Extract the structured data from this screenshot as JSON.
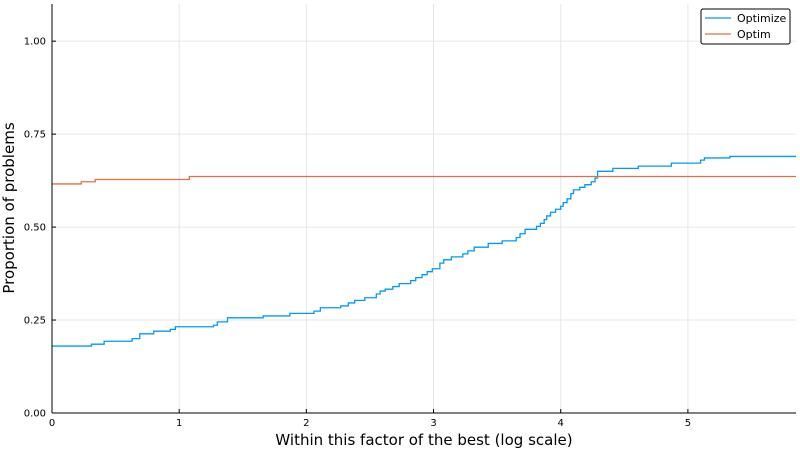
{
  "chart_data": {
    "type": "line",
    "step": true,
    "xlabel": "Within this factor of the best (log scale)",
    "ylabel": "Proportion of problems",
    "xlim": [
      0,
      5.85
    ],
    "ylim": [
      0,
      1.1
    ],
    "xticks": [
      0,
      1,
      2,
      3,
      4,
      5
    ],
    "xtick_labels": [
      "0",
      "1",
      "2",
      "3",
      "4",
      "5"
    ],
    "yticks": [
      0,
      0.25,
      0.5,
      0.75,
      1.0
    ],
    "ytick_labels": [
      "0.00",
      "0.25",
      "0.50",
      "0.75",
      "1.00"
    ],
    "grid": true,
    "legend_position": "top-right",
    "series": [
      {
        "name": "Optimize",
        "color": "#009AFA",
        "points": [
          [
            0,
            0.18
          ],
          [
            0.31,
            0.185
          ],
          [
            0.41,
            0.193
          ],
          [
            0.63,
            0.2
          ],
          [
            0.69,
            0.213
          ],
          [
            0.8,
            0.22
          ],
          [
            0.93,
            0.225
          ],
          [
            0.97,
            0.232
          ],
          [
            1.27,
            0.236
          ],
          [
            1.3,
            0.245
          ],
          [
            1.38,
            0.256
          ],
          [
            1.66,
            0.261
          ],
          [
            1.87,
            0.268
          ],
          [
            2.06,
            0.274
          ],
          [
            2.11,
            0.283
          ],
          [
            2.27,
            0.288
          ],
          [
            2.33,
            0.296
          ],
          [
            2.38,
            0.303
          ],
          [
            2.46,
            0.31
          ],
          [
            2.55,
            0.32
          ],
          [
            2.58,
            0.328
          ],
          [
            2.62,
            0.333
          ],
          [
            2.68,
            0.34
          ],
          [
            2.73,
            0.348
          ],
          [
            2.82,
            0.356
          ],
          [
            2.86,
            0.364
          ],
          [
            2.91,
            0.372
          ],
          [
            2.95,
            0.38
          ],
          [
            2.99,
            0.388
          ],
          [
            3.05,
            0.403
          ],
          [
            3.08,
            0.412
          ],
          [
            3.14,
            0.42
          ],
          [
            3.23,
            0.428
          ],
          [
            3.27,
            0.436
          ],
          [
            3.32,
            0.446
          ],
          [
            3.43,
            0.456
          ],
          [
            3.54,
            0.463
          ],
          [
            3.65,
            0.472
          ],
          [
            3.68,
            0.482
          ],
          [
            3.72,
            0.494
          ],
          [
            3.81,
            0.502
          ],
          [
            3.84,
            0.51
          ],
          [
            3.87,
            0.52
          ],
          [
            3.89,
            0.53
          ],
          [
            3.92,
            0.54
          ],
          [
            3.96,
            0.548
          ],
          [
            4.0,
            0.556
          ],
          [
            4.02,
            0.566
          ],
          [
            4.05,
            0.576
          ],
          [
            4.08,
            0.59
          ],
          [
            4.1,
            0.6
          ],
          [
            4.15,
            0.607
          ],
          [
            4.19,
            0.614
          ],
          [
            4.24,
            0.622
          ],
          [
            4.27,
            0.632
          ],
          [
            4.29,
            0.65
          ],
          [
            4.41,
            0.658
          ],
          [
            4.61,
            0.664
          ],
          [
            4.87,
            0.672
          ],
          [
            5.1,
            0.68
          ],
          [
            5.13,
            0.686
          ],
          [
            5.33,
            0.69
          ],
          [
            5.85,
            0.69
          ]
        ]
      },
      {
        "name": "Optim",
        "color": "#E26F46",
        "points": [
          [
            0,
            0.616
          ],
          [
            0.23,
            0.622
          ],
          [
            0.34,
            0.628
          ],
          [
            1.08,
            0.636
          ],
          [
            5.85,
            0.636
          ]
        ]
      }
    ]
  }
}
